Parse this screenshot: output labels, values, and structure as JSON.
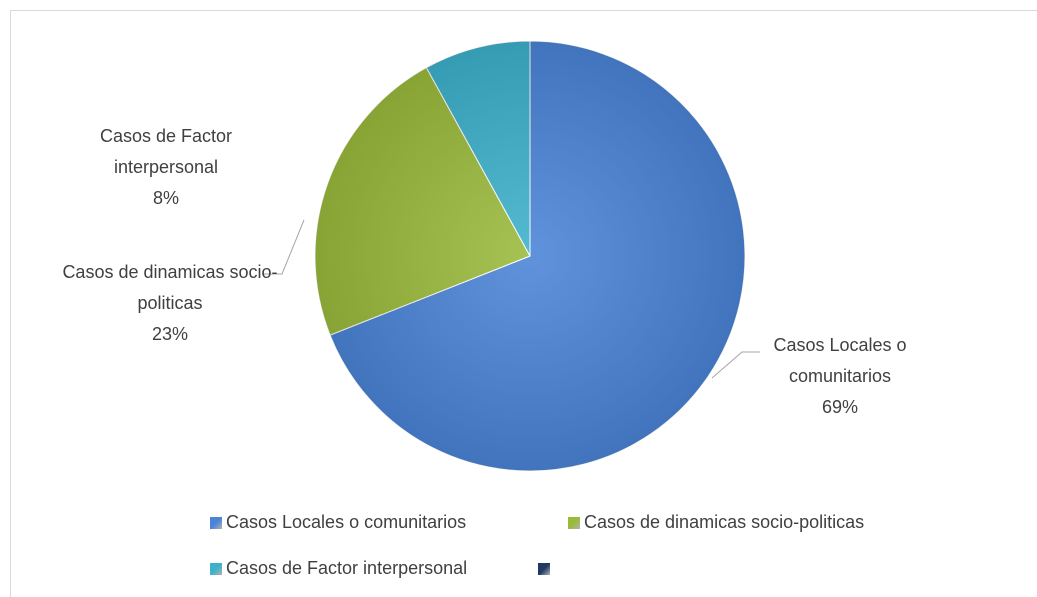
{
  "chart_data": {
    "type": "pie",
    "categories": [
      "Casos Locales o comunitarios",
      "Casos de dinamicas socio-politicas",
      "Casos de Factor interpersonal",
      null
    ],
    "values": [
      69,
      23,
      8,
      0
    ],
    "value_labels": [
      "69%",
      "23%",
      "8%",
      null
    ],
    "colors": [
      "#4a84d6",
      "#9aba3c",
      "#3db1cc",
      "#1f3864"
    ],
    "legend": "bottom"
  }
}
